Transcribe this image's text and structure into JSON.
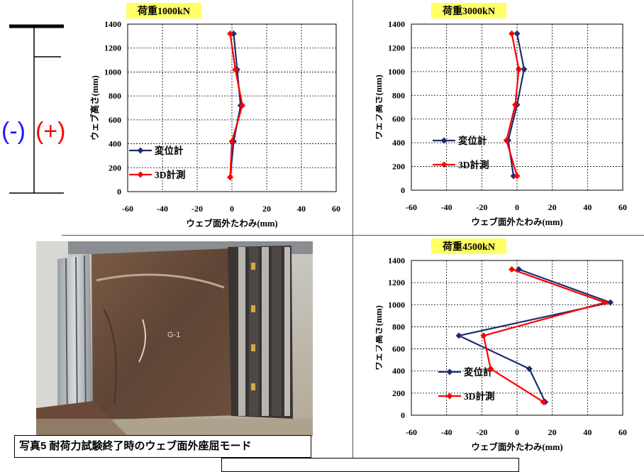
{
  "sign_minus": "(-)",
  "sign_plus": "(+)",
  "caption": "写真5  耐荷力試験終了時のウェブ面外座屈モード",
  "colors": {
    "series1": "#1f2e6e",
    "series2": "#ff0000",
    "label_bg": "#ffff66",
    "minus": "#1a1aff",
    "plus": "#ff0000"
  },
  "chart_data": [
    {
      "type": "line",
      "title": "荷重1000kN",
      "xlabel": "ウェブ面外たわみ(mm)",
      "ylabel": "ウェブ高さ(mm)",
      "xlim": [
        -60,
        60
      ],
      "ylim": [
        0,
        1400
      ],
      "xticks": [
        -60,
        -40,
        -20,
        0,
        20,
        40,
        60
      ],
      "yticks": [
        0,
        200,
        400,
        600,
        800,
        1000,
        1200,
        1400
      ],
      "grid": true,
      "legend": "left-middle",
      "series": [
        {
          "name": "変位計",
          "x": [
            -1,
            1,
            5,
            3,
            1
          ],
          "y": [
            120,
            420,
            720,
            1020,
            1320
          ]
        },
        {
          "name": "3D計測",
          "x": [
            -1,
            0,
            6,
            2,
            -1
          ],
          "y": [
            120,
            420,
            720,
            1020,
            1320
          ]
        }
      ]
    },
    {
      "type": "line",
      "title": "荷重3000kN",
      "xlabel": "ウェブ面外たわみ(mm)",
      "ylabel": "ウェブ高さ(mm)",
      "xlim": [
        -60,
        60
      ],
      "ylim": [
        0,
        1400
      ],
      "xticks": [
        -60,
        -40,
        -20,
        0,
        20,
        40,
        60
      ],
      "yticks": [
        0,
        200,
        400,
        600,
        800,
        1000,
        1200,
        1400
      ],
      "grid": true,
      "legend": "left-middle",
      "series": [
        {
          "name": "変位計",
          "x": [
            -2,
            -5,
            0,
            4,
            0
          ],
          "y": [
            120,
            420,
            720,
            1020,
            1320
          ]
        },
        {
          "name": "3D計測",
          "x": [
            0,
            -6,
            -1,
            1,
            -3
          ],
          "y": [
            120,
            420,
            720,
            1020,
            1320
          ]
        }
      ]
    },
    {
      "type": "line",
      "title": "荷重4500kN",
      "xlabel": "ウェブ面外たわみ(mm)",
      "ylabel": "ウェブ高さ(mm)",
      "xlim": [
        -60,
        60
      ],
      "ylim": [
        0,
        1400
      ],
      "xticks": [
        -60,
        -40,
        -20,
        0,
        20,
        40,
        60
      ],
      "yticks": [
        0,
        200,
        400,
        600,
        800,
        1000,
        1200,
        1400
      ],
      "grid": true,
      "legend": "left-lower",
      "series": [
        {
          "name": "変位計",
          "x": [
            16,
            7,
            -33,
            53,
            1
          ],
          "y": [
            120,
            420,
            720,
            1020,
            1320
          ]
        },
        {
          "name": "3D計測",
          "x": [
            15,
            -15,
            -19,
            50,
            -3
          ],
          "y": [
            120,
            420,
            720,
            1020,
            1320
          ]
        }
      ]
    }
  ]
}
